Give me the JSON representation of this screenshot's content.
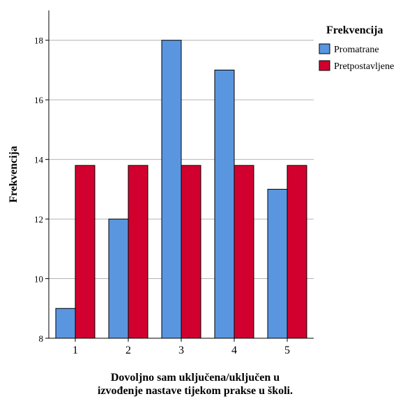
{
  "chart_data": {
    "type": "bar",
    "title": "",
    "categories": [
      "1",
      "2",
      "3",
      "4",
      "5"
    ],
    "series": [
      {
        "name": "Promatrane",
        "color": "#5a96e0",
        "values": [
          9,
          12,
          18,
          17,
          13
        ]
      },
      {
        "name": "Pretpostavljene",
        "color": "#d1002e",
        "values": [
          13.8,
          13.8,
          13.8,
          13.8,
          13.8
        ]
      }
    ],
    "xlabel": {
      "line1": "Dovoljno sam uključena/uključen u",
      "line2": "izvođenje nastave tijekom prakse u školi."
    },
    "ylabel": "Frekvencija",
    "ylim": [
      8,
      19
    ],
    "yticks": [
      8,
      10,
      12,
      14,
      16,
      18
    ],
    "grid": true,
    "legend": {
      "title": "Frekvencija",
      "placement": "top-right"
    }
  }
}
